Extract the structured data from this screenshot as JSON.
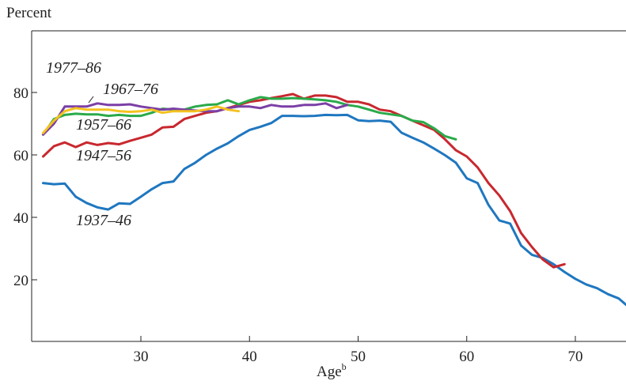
{
  "chart_data": {
    "type": "line",
    "ylabel": "Percent",
    "xlabel": "Age",
    "xlabel_superscript": "b",
    "xlim": [
      20.5,
      75
    ],
    "ylim": [
      0,
      100
    ],
    "x_ticks": [
      30,
      40,
      50,
      60,
      70
    ],
    "y_ticks": [
      20,
      40,
      60,
      80
    ],
    "grid": false,
    "series": [
      {
        "name": "1937–46",
        "color": "#1f77c0",
        "x": [
          21,
          22,
          23,
          24,
          25,
          26,
          27,
          28,
          29,
          30,
          31,
          32,
          33,
          34,
          35,
          36,
          37,
          38,
          39,
          40,
          41,
          42,
          43,
          44,
          45,
          46,
          47,
          48,
          49,
          50,
          51,
          52,
          53,
          54,
          55,
          56,
          57,
          58,
          59,
          60,
          61,
          62,
          63,
          64,
          65,
          66,
          67,
          68,
          69,
          70,
          71,
          72,
          73,
          74,
          75
        ],
        "values": [
          51,
          50.6,
          50.8,
          46.6,
          44.6,
          43.2,
          42.5,
          44.5,
          44.3,
          46.6,
          49.0,
          51.0,
          51.5,
          55.5,
          57.5,
          60.0,
          62.0,
          63.7,
          66.0,
          68.0,
          69.0,
          70.2,
          72.5,
          72.5,
          72.4,
          72.5,
          72.8,
          72.7,
          72.8,
          71.1,
          70.8,
          71.0,
          70.6,
          67.1,
          65.5,
          64.0,
          62.0,
          59.9,
          57.5,
          52.5,
          51.0,
          44.0,
          39.0,
          38.0,
          31.0,
          28.0,
          27.0,
          25.0,
          22.5,
          20.3,
          18.5,
          17.3,
          15.4,
          14.0,
          12.0
        ]
      },
      {
        "name": "1947–56",
        "color": "#c8282f",
        "x": [
          21,
          22,
          23,
          24,
          25,
          26,
          27,
          28,
          29,
          30,
          31,
          32,
          33,
          34,
          35,
          36,
          37,
          38,
          39,
          40,
          41,
          42,
          43,
          44,
          45,
          46,
          47,
          48,
          49,
          50,
          51,
          52,
          53,
          54,
          55,
          56,
          57,
          58,
          59,
          60,
          61,
          62,
          63,
          64,
          65,
          66,
          67,
          68,
          69
        ],
        "values": [
          59.5,
          62.8,
          64.0,
          62.5,
          64.0,
          63.2,
          63.8,
          63.4,
          64.5,
          65.5,
          66.5,
          68.8,
          69.0,
          71.5,
          72.5,
          73.5,
          74.0,
          75.0,
          76.0,
          77.0,
          77.5,
          78.2,
          78.8,
          79.5,
          78.0,
          79.0,
          79.0,
          78.5,
          77.0,
          77.0,
          76.2,
          74.5,
          74.0,
          72.5,
          71.0,
          69.5,
          68.0,
          65.0,
          61.5,
          59.5,
          56.0,
          51.0,
          47.0,
          42.0,
          35.0,
          30.5,
          26.5,
          24.0,
          25.0
        ]
      },
      {
        "name": "1957–66",
        "color": "#2aaa4a",
        "x": [
          21,
          22,
          23,
          24,
          25,
          26,
          27,
          28,
          29,
          30,
          31,
          32,
          33,
          34,
          35,
          36,
          37,
          38,
          39,
          40,
          41,
          42,
          43,
          44,
          45,
          46,
          47,
          48,
          49,
          50,
          51,
          52,
          53,
          54,
          55,
          56,
          57,
          58,
          59
        ],
        "values": [
          66.5,
          71.5,
          72.8,
          73.2,
          73.0,
          73.0,
          72.5,
          72.8,
          72.5,
          72.5,
          73.5,
          74.8,
          74.5,
          74.5,
          75.5,
          76.0,
          76.2,
          77.5,
          76.2,
          77.5,
          78.5,
          78.0,
          78.0,
          78.2,
          78.0,
          77.8,
          77.5,
          77.0,
          76.0,
          75.5,
          74.5,
          73.5,
          73.0,
          72.5,
          71.0,
          70.5,
          68.5,
          66.0,
          65.0
        ]
      },
      {
        "name": "1967–76",
        "color": "#7b3fa6",
        "x": [
          21,
          22,
          23,
          24,
          25,
          26,
          27,
          28,
          29,
          30,
          31,
          32,
          33,
          34,
          35,
          36,
          37,
          38,
          39,
          40,
          41,
          42,
          43,
          44,
          45,
          46,
          47,
          48,
          49
        ],
        "values": [
          66.5,
          70.0,
          75.5,
          75.5,
          75.5,
          76.5,
          76.0,
          76.0,
          76.2,
          75.5,
          75.0,
          74.5,
          74.8,
          74.5,
          74.2,
          74.0,
          74.0,
          75.0,
          75.5,
          75.5,
          75.0,
          76.0,
          75.5,
          75.5,
          76.0,
          76.0,
          76.5,
          75.0,
          76.0
        ]
      },
      {
        "name": "1977–86",
        "color": "#f4c21e",
        "x": [
          21,
          22,
          23,
          24,
          25,
          26,
          27,
          28,
          29,
          30,
          31,
          32,
          33,
          34,
          35,
          36,
          37,
          38,
          39
        ],
        "values": [
          67.0,
          71.0,
          74.0,
          75.0,
          74.5,
          74.5,
          74.5,
          74.0,
          73.8,
          74.0,
          74.5,
          73.5,
          74.0,
          74.0,
          74.0,
          74.5,
          75.5,
          74.5,
          74.0
        ]
      }
    ],
    "series_labels": {
      "1977–86": "1977–86",
      "1967–76": "1967–76",
      "1957–66": "1957–66",
      "1947–56": "1947–56",
      "1937–46": "1937–46"
    }
  }
}
